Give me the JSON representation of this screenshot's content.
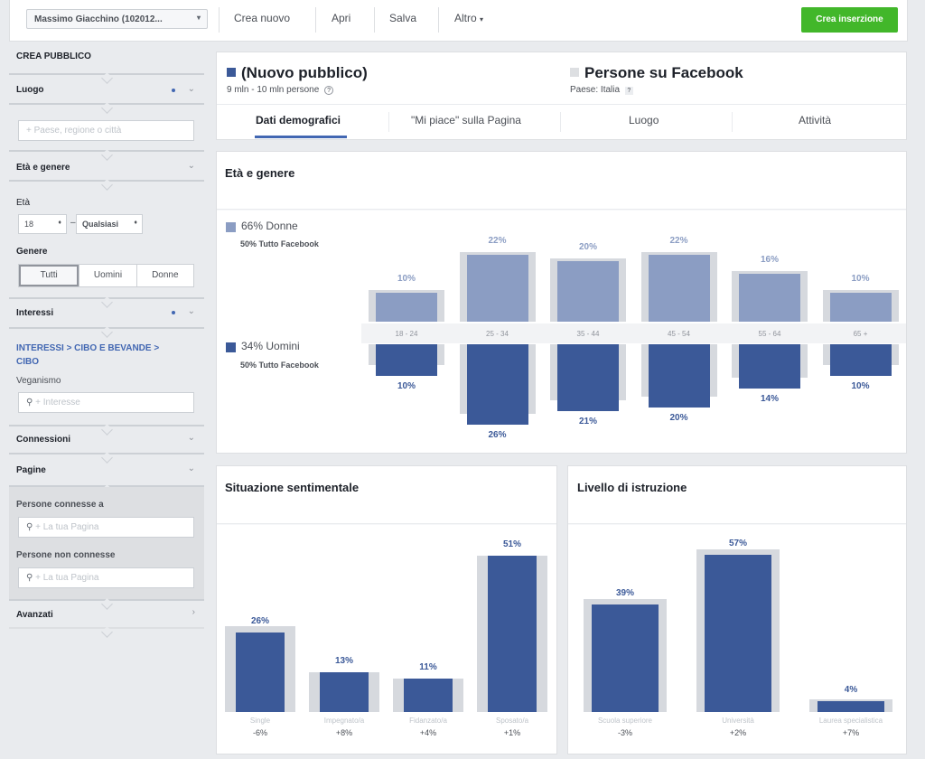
{
  "topbar": {
    "account": "Massimo Giacchino (102012...",
    "create_new": "Crea nuovo",
    "open": "Apri",
    "save": "Salva",
    "more": "Altro",
    "create_ad": "Crea inserzione"
  },
  "sidebar": {
    "title": "CREA PUBBLICO",
    "location": {
      "label": "Luogo",
      "placeholder": "Paese, regione o città"
    },
    "age_gender": {
      "label": "Età e genere",
      "age_label": "Età",
      "age_from": "18",
      "age_to": "Qualsiasi",
      "gender_label": "Genere",
      "genders": [
        "Tutti",
        "Uomini",
        "Donne"
      ],
      "selected_gender": "Tutti"
    },
    "interests": {
      "label": "Interessi",
      "path": "INTERESSI > CIBO E BEVANDE > CIBO",
      "selected": "Veganismo",
      "placeholder": "Interesse"
    },
    "connections": "Connessioni",
    "pages": {
      "label": "Pagine",
      "connected_label": "Persone connesse a",
      "connected_placeholder": "La tua Pagina",
      "not_connected_label": "Persone non connesse",
      "not_connected_placeholder": "La tua Pagina"
    },
    "advanced": "Avanzati"
  },
  "audience": {
    "new_title": "(Nuovo pubblico)",
    "new_size": "9 mln - 10 mln persone",
    "fb_title": "Persone su Facebook",
    "fb_country": "Paese: Italia"
  },
  "tabs": [
    "Dati demografici",
    "\"Mi piace\" sulla Pagina",
    "Luogo",
    "Attività"
  ],
  "active_tab": "Dati demografici",
  "colors": {
    "women": "#8b9dc3",
    "men": "#3b5998",
    "ghost": "#d6d9de",
    "accent": "#4267b2",
    "create_button": "#42b72a"
  },
  "age_gender_card": {
    "title": "Età e genere",
    "women_label": "66% Donne",
    "women_sub": "50% Tutto Facebook",
    "men_label": "34% Uomini",
    "men_sub": "50% Tutto Facebook"
  },
  "relationship_card": {
    "title": "Situazione sentimentale"
  },
  "education_card": {
    "title": "Livello di istruzione"
  },
  "chart_data": [
    {
      "type": "bar",
      "title": "Età e genere",
      "categories": [
        "18 - 24",
        "25 - 34",
        "35 - 44",
        "45 - 54",
        "55 - 64",
        "65 +"
      ],
      "series": [
        {
          "name": "66% Donne",
          "values": [
            10,
            22,
            20,
            22,
            16,
            10
          ],
          "labels": [
            "10%",
            "22%",
            "20%",
            "22%",
            "16%",
            "10%"
          ]
        },
        {
          "name": "34% Uomini",
          "values": [
            10,
            26,
            21,
            20,
            14,
            10
          ],
          "labels": [
            "10%",
            "26%",
            "21%",
            "20%",
            "14%",
            "10%"
          ]
        }
      ],
      "ylim": [
        0,
        30
      ]
    },
    {
      "type": "bar",
      "title": "Situazione sentimentale",
      "categories": [
        "Single",
        "Impegnato/a",
        "Fidanzato/a",
        "Sposato/a"
      ],
      "values": [
        26,
        13,
        11,
        51
      ],
      "labels": [
        "26%",
        "13%",
        "11%",
        "51%"
      ],
      "deltas": [
        "-6%",
        "+8%",
        "+4%",
        "+1%"
      ],
      "ylim": [
        0,
        60
      ]
    },
    {
      "type": "bar",
      "title": "Livello di istruzione",
      "categories": [
        "Scuola superiore",
        "Università",
        "Laurea specialistica"
      ],
      "values": [
        39,
        57,
        4
      ],
      "labels": [
        "39%",
        "57%",
        "4%"
      ],
      "deltas": [
        "-3%",
        "+2%",
        "+7%"
      ],
      "ylim": [
        0,
        60
      ]
    }
  ]
}
